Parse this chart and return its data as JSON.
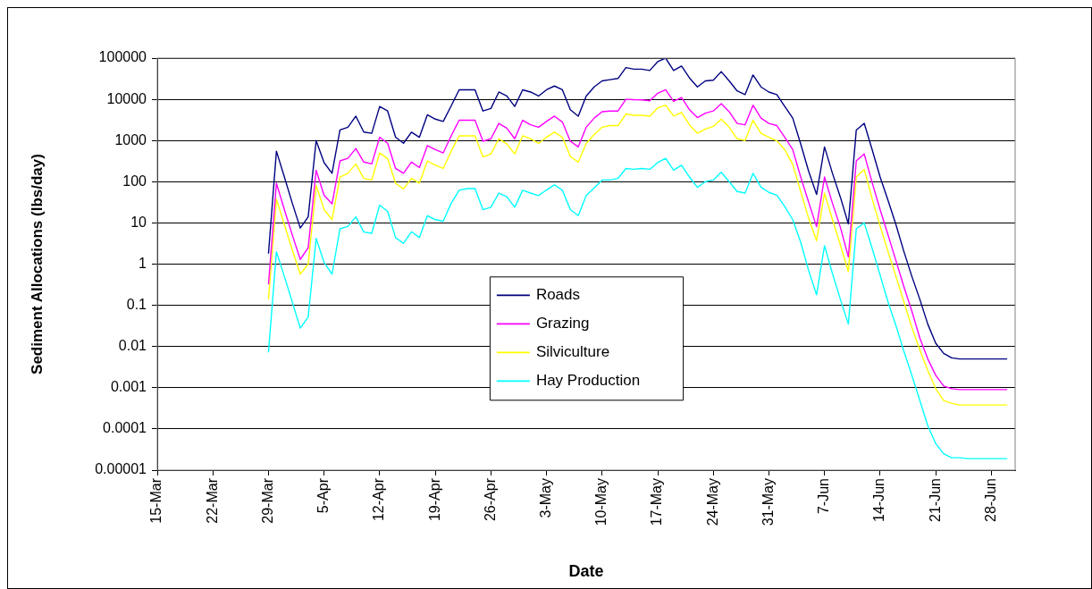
{
  "chart_data": {
    "type": "line",
    "xlabel": "Date",
    "ylabel": "Sediment Allocations (lbs/day)",
    "log": "y",
    "grid": "y",
    "legend": "center",
    "marker": "none",
    "line_style": "solid",
    "ylim": [
      1e-05,
      100000
    ],
    "yticks": [
      {
        "value": 1e-05,
        "label": "0.00001"
      },
      0.0001,
      0.001,
      0.01,
      0.1,
      1,
      10,
      100,
      1000,
      10000,
      100000
    ],
    "xlim": [
      "--03-15",
      "--07-01"
    ],
    "xticks": [
      {
        "value": "--03-15",
        "label": "15-Mar"
      },
      {
        "value": "--03-22",
        "label": "22-Mar"
      },
      {
        "value": "--03-29",
        "label": "29-Mar"
      },
      {
        "value": "--04-05",
        "label": "5-Apr"
      },
      {
        "value": "--04-12",
        "label": "12-Apr"
      },
      {
        "value": "--04-19",
        "label": "19-Apr"
      },
      {
        "value": "--04-26",
        "label": "26-Apr"
      },
      {
        "value": "--05-03",
        "label": "3-May"
      },
      {
        "value": "--05-10",
        "label": "10-May"
      },
      {
        "value": "--05-17",
        "label": "17-May"
      },
      {
        "value": "--05-24",
        "label": "24-May"
      },
      {
        "value": "--05-31",
        "label": "31-May"
      },
      {
        "value": "--06-07",
        "label": "7-Jun"
      },
      {
        "value": "--06-14",
        "label": "14-Jun"
      },
      {
        "value": "--06-21",
        "label": "21-Jun"
      },
      {
        "value": "--06-28",
        "label": "28-Jun"
      }
    ],
    "x": [
      "--03-29",
      "--03-30",
      "--03-31",
      "--04-01",
      "--04-02",
      "--04-03",
      "--04-04",
      "--04-05",
      "--04-06",
      "--04-07",
      "--04-08",
      "--04-09",
      "--04-10",
      "--04-11",
      "--04-12",
      "--04-13",
      "--04-14",
      "--04-15",
      "--04-16",
      "--04-17",
      "--04-18",
      "--04-19",
      "--04-20",
      "--04-21",
      "--04-22",
      "--04-23",
      "--04-24",
      "--04-25",
      "--04-26",
      "--04-27",
      "--04-28",
      "--04-29",
      "--04-30",
      "--05-01",
      "--05-02",
      "--05-03",
      "--05-04",
      "--05-05",
      "--05-06",
      "--05-07",
      "--05-08",
      "--05-09",
      "--05-10",
      "--05-11",
      "--05-12",
      "--05-13",
      "--05-14",
      "--05-15",
      "--05-16",
      "--05-17",
      "--05-18",
      "--05-19",
      "--05-20",
      "--05-21",
      "--05-22",
      "--05-23",
      "--05-24",
      "--05-25",
      "--05-26",
      "--05-27",
      "--05-28",
      "--05-29",
      "--05-30",
      "--05-31",
      "--06-01",
      "--06-02",
      "--06-03",
      "--06-04",
      "--06-05",
      "--06-06",
      "--06-07",
      "--06-08",
      "--06-09",
      "--06-10",
      "--06-11",
      "--06-12",
      "--06-13",
      "--06-14",
      "--06-15",
      "--06-16",
      "--06-17",
      "--06-18",
      "--06-19",
      "--06-20",
      "--06-21",
      "--06-22",
      "--06-23",
      "--06-24",
      "--06-25",
      "--06-26",
      "--06-27",
      "--06-28",
      "--06-29",
      "--06-30"
    ],
    "series": [
      {
        "name": "Roads",
        "color": "#000080",
        "values": [
          1.8,
          550,
          130,
          30,
          7.5,
          14,
          1000,
          290,
          160,
          1800,
          2100,
          3900,
          1600,
          1500,
          6700,
          5200,
          1200,
          860,
          1600,
          1200,
          4200,
          3300,
          2900,
          6900,
          17000,
          17000,
          17000,
          5200,
          6000,
          15000,
          12000,
          6700,
          17000,
          15000,
          12000,
          17000,
          21000,
          17000,
          5600,
          3900,
          12000,
          20000,
          28000,
          30000,
          32000,
          59000,
          54000,
          54000,
          50000,
          82000,
          100000,
          50000,
          64000,
          33000,
          20000,
          28000,
          29000,
          47000,
          28000,
          16000,
          13000,
          39000,
          20000,
          15000,
          13000,
          6700,
          3500,
          830,
          180,
          49,
          700,
          160,
          42,
          9.5,
          1800,
          2600,
          600,
          130,
          35,
          9,
          2,
          0.5,
          0.14,
          0.035,
          0.012,
          0.0068,
          0.0053,
          0.005,
          0.005,
          0.005,
          0.005,
          0.005,
          0.005,
          0.005
        ]
      },
      {
        "name": "Grazing",
        "color": "#ff00ff",
        "values": [
          0.32,
          92,
          21,
          5.1,
          1.3,
          2.5,
          190,
          47,
          29,
          320,
          370,
          640,
          300,
          270,
          1200,
          860,
          210,
          160,
          300,
          220,
          750,
          600,
          500,
          1300,
          3100,
          3100,
          3100,
          960,
          1100,
          2600,
          2000,
          1100,
          3100,
          2400,
          2100,
          2900,
          3900,
          2800,
          960,
          700,
          2100,
          3500,
          5000,
          5200,
          5200,
          10000,
          9800,
          9700,
          9200,
          14000,
          17000,
          8900,
          11000,
          5600,
          3600,
          4600,
          5200,
          7800,
          5000,
          2600,
          2400,
          7200,
          3500,
          2600,
          2300,
          1200,
          600,
          130,
          32,
          8.1,
          130,
          30,
          7.8,
          1.5,
          320,
          470,
          95,
          21,
          5.1,
          1.2,
          0.28,
          0.072,
          0.016,
          0.005,
          0.002,
          0.0011,
          0.00095,
          0.0009,
          0.0009,
          0.0009,
          0.0009,
          0.0009,
          0.0009,
          0.0009
        ]
      },
      {
        "name": "Silviculture",
        "color": "#ffff00",
        "values": [
          0.14,
          38,
          9.1,
          2.2,
          0.57,
          1.0,
          81,
          21,
          12,
          130,
          160,
          270,
          120,
          110,
          500,
          360,
          92,
          67,
          120,
          92,
          320,
          250,
          210,
          550,
          1300,
          1300,
          1300,
          400,
          470,
          1100,
          830,
          470,
          1300,
          1100,
          850,
          1200,
          1600,
          1200,
          410,
          300,
          850,
          1400,
          2100,
          2300,
          2300,
          4400,
          4100,
          4100,
          3900,
          6200,
          7200,
          3900,
          4800,
          2400,
          1500,
          1900,
          2200,
          3300,
          2100,
          1100,
          1000,
          3100,
          1500,
          1200,
          980,
          600,
          260,
          58,
          13,
          3.7,
          53,
          12,
          2.9,
          0.66,
          130,
          200,
          38,
          8.5,
          2.0,
          0.5,
          0.12,
          0.029,
          0.0083,
          0.0026,
          0.00095,
          0.00049,
          0.00042,
          0.00038,
          0.00038,
          0.00038,
          0.00038,
          0.00038,
          0.00038,
          0.00038
        ]
      },
      {
        "name": "Hay Production",
        "color": "#00ffff",
        "values": [
          0.0072,
          2.0,
          0.5,
          0.12,
          0.028,
          0.052,
          4.2,
          1.1,
          0.57,
          7.2,
          8.2,
          14,
          6.0,
          5.6,
          27,
          19,
          4.4,
          3.2,
          6.1,
          4.4,
          15,
          12,
          11,
          30,
          62,
          68,
          68,
          21,
          24,
          53,
          43,
          24,
          62,
          53,
          46,
          63,
          84,
          62,
          21,
          15,
          46,
          71,
          110,
          110,
          120,
          210,
          200,
          210,
          200,
          290,
          370,
          190,
          250,
          130,
          73,
          100,
          110,
          170,
          100,
          58,
          53,
          160,
          74,
          55,
          47,
          25,
          12,
          3.4,
          0.7,
          0.18,
          2.8,
          0.59,
          0.14,
          0.035,
          7.2,
          10,
          2.4,
          0.54,
          0.12,
          0.032,
          0.0076,
          0.002,
          0.00049,
          0.00012,
          4.4e-05,
          2.5e-05,
          2e-05,
          2e-05,
          1.9e-05,
          1.9e-05,
          1.9e-05,
          1.9e-05,
          1.9e-05,
          1.9e-05
        ]
      }
    ]
  }
}
